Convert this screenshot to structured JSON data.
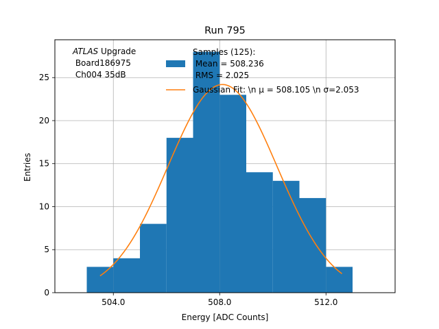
{
  "chart_data": {
    "type": "bar",
    "title": "Run 795",
    "xlabel": "Energy [ADC Counts]",
    "ylabel": "Entries",
    "xlim": [
      501.8,
      514.6
    ],
    "ylim": [
      0,
      29.4
    ],
    "grid": true,
    "xticks": [
      504.0,
      508.0,
      512.0
    ],
    "xtick_labels": [
      "504.0",
      "508.0",
      "512.0"
    ],
    "yticks": [
      0,
      5,
      10,
      15,
      20,
      25
    ],
    "yticks_labels": [
      "0",
      "5",
      "10",
      "15",
      "20",
      "25"
    ],
    "bins": [
      {
        "x0": 503,
        "x1": 504,
        "count": 3
      },
      {
        "x0": 504,
        "x1": 505,
        "count": 4
      },
      {
        "x0": 505,
        "x1": 506,
        "count": 8
      },
      {
        "x0": 506,
        "x1": 507,
        "count": 18
      },
      {
        "x0": 507,
        "x1": 508,
        "count": 28
      },
      {
        "x0": 508,
        "x1": 509,
        "count": 23
      },
      {
        "x0": 509,
        "x1": 510,
        "count": 14
      },
      {
        "x0": 510,
        "x1": 511,
        "count": 13
      },
      {
        "x0": 511,
        "x1": 512,
        "count": 11
      },
      {
        "x0": 512,
        "x1": 513,
        "count": 3
      }
    ],
    "fit": {
      "type": "gaussian",
      "mu": 508.105,
      "sigma": 2.053,
      "peak": 24.2,
      "x_range": [
        503.5,
        512.6
      ]
    },
    "colors": {
      "bars": "#1f77b4",
      "fit": "#ff7f0e",
      "grid": "#b0b0b0"
    },
    "annotation": {
      "line1_italic": "ATLAS",
      "line1_rest": " Upgrade",
      "line2": " Board186975",
      "line3": " Ch004 35dB"
    },
    "legend": {
      "placement": "upper right",
      "hist_label_lines": [
        "Samples (125):",
        " Mean = 508.236",
        " RMS = 2.025"
      ],
      "fit_label": "Gaussian Fit: \\n μ = 508.105 \\n σ=2.053"
    }
  }
}
